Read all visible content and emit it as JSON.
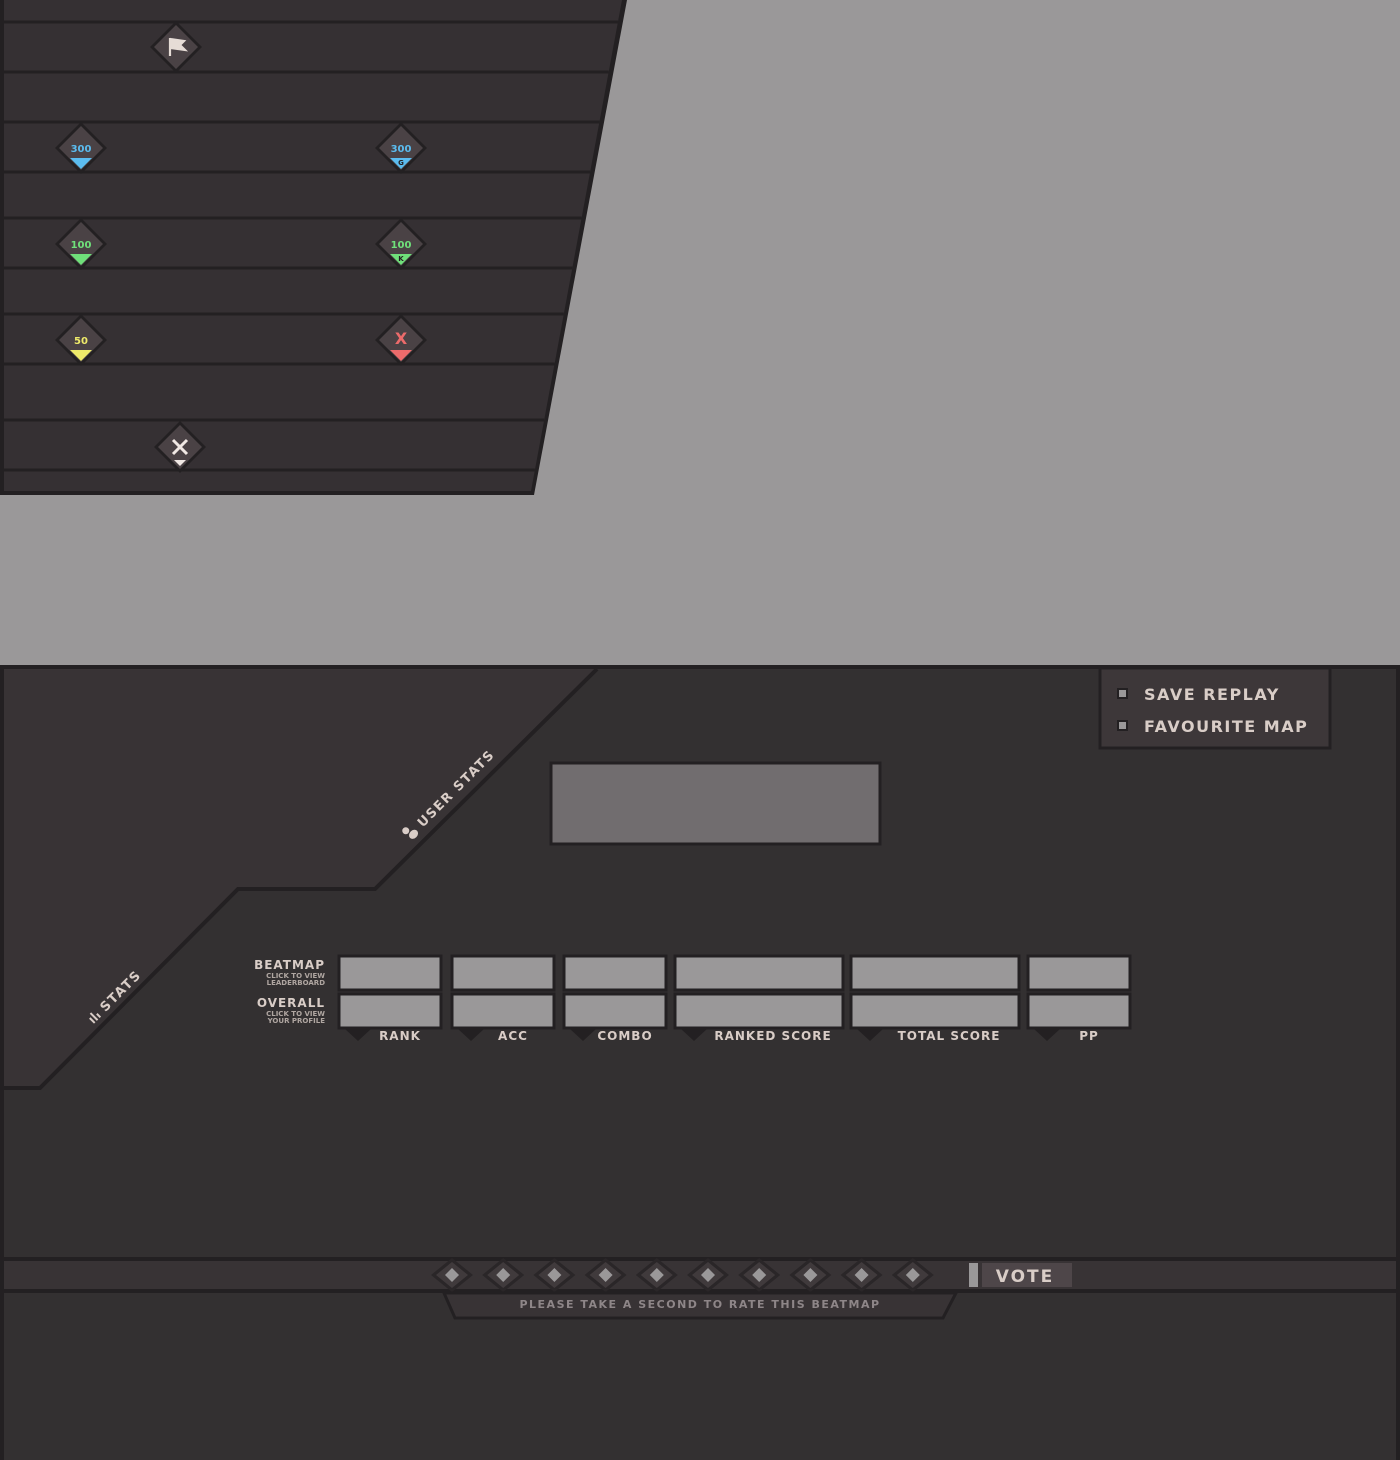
{
  "judgements": [
    {
      "label": "300",
      "color": "#5bbcef",
      "sub": ""
    },
    {
      "label": "300",
      "color": "#5bbcef",
      "sub": "G"
    },
    {
      "label": "100",
      "color": "#6fe07a",
      "sub": ""
    },
    {
      "label": "100",
      "color": "#6fe07a",
      "sub": "K"
    },
    {
      "label": "50",
      "color": "#eeea6a",
      "sub": ""
    },
    {
      "label": "X",
      "color": "#ec6b6b",
      "sub": ""
    }
  ],
  "icons": {
    "top": "flag-icon",
    "bottom": "miss-x-icon"
  },
  "menu": {
    "save_replay": "SAVE REPLAY",
    "favourite_map": "FAVOURITE MAP"
  },
  "tabs": {
    "user_stats": "USER STATS",
    "stats": "STATS"
  },
  "rows": {
    "beatmap": {
      "title": "BEATMAP",
      "sub1": "CLICK TO VIEW",
      "sub2": "LEADERBOARD"
    },
    "overall": {
      "title": "OVERALL",
      "sub1": "CLICK TO VIEW",
      "sub2": "YOUR PROFILE"
    }
  },
  "columns": [
    "RANK",
    "ACC",
    "COMBO",
    "RANKED SCORE",
    "TOTAL SCORE",
    "PP"
  ],
  "rating": {
    "stars": 10,
    "vote_label": "VOTE",
    "prompt": "PLEASE TAKE A SECOND TO RATE THIS BEATMAP"
  },
  "colors": {
    "panel": "#353033",
    "line": "#232022",
    "background": "#9a9899",
    "text": "#d9cdc7",
    "box": "#9a9899"
  }
}
